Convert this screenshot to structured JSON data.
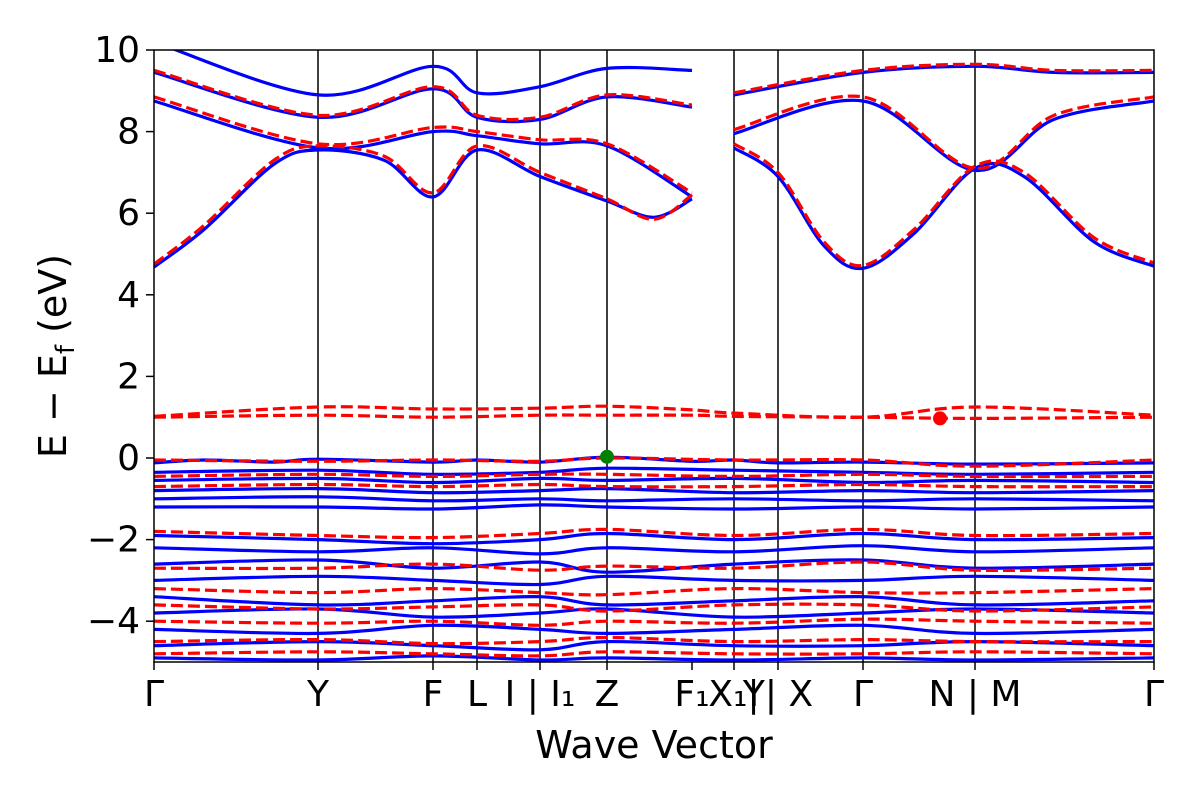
{
  "chart_data": {
    "type": "line",
    "title": "",
    "xlabel": "Wave Vector",
    "ylabel": "E − E",
    "ylabel_subscript": "f",
    "ylabel_unit": "(eV)",
    "ylim": [
      -5,
      10
    ],
    "yticks": [
      -4,
      -2,
      0,
      2,
      4,
      6,
      8,
      10
    ],
    "k_points": [
      {
        "label": "Γ",
        "x": 0.0
      },
      {
        "label": "Y",
        "x": 0.164
      },
      {
        "label": "F",
        "x": 0.279
      },
      {
        "label": "L",
        "x": 0.323
      },
      {
        "label": "I | I₁",
        "x": 0.386
      },
      {
        "label": "Z",
        "x": 0.453
      },
      {
        "label": "F₁",
        "x": 0.538
      },
      {
        "label": "X₁|",
        "x": 0.58
      },
      {
        "label": "Y| X",
        "x": 0.624
      },
      {
        "label": "Γ",
        "x": 0.709
      },
      {
        "label": "N | M",
        "x": 0.821
      },
      {
        "label": "Γ",
        "x": 1.0
      }
    ],
    "vertical_lines_x": [
      0.164,
      0.279,
      0.323,
      0.386,
      0.453,
      0.58,
      0.624,
      0.709,
      0.821
    ],
    "series": [
      {
        "name": "",
        "style": "solid",
        "color": "#0000ff",
        "bands": [
          {
            "x": [
              0,
              0.05,
              0.12,
              0.164,
              0.23,
              0.279,
              0.323,
              0.386,
              0.453,
              0.5,
              0.538
            ],
            "y": [
              4.68,
              5.6,
              7.2,
              7.55,
              7.3,
              6.4,
              7.55,
              6.9,
              6.3,
              5.9,
              6.35
            ]
          },
          {
            "x": [
              0.58,
              0.624,
              0.67,
              0.709,
              0.76,
              0.821,
              0.87,
              0.94,
              1.0
            ],
            "y": [
              7.6,
              6.9,
              5.2,
              4.65,
              5.5,
              7.1,
              6.9,
              5.3,
              4.7
            ]
          },
          {
            "x": [
              0,
              0.164,
              0.279,
              0.323,
              0.386,
              0.453,
              0.538
            ],
            "y": [
              8.75,
              7.6,
              8.0,
              7.9,
              7.7,
              7.65,
              6.4
            ]
          },
          {
            "x": [
              0.58,
              0.709,
              0.821,
              0.9,
              1.0
            ],
            "y": [
              7.95,
              8.75,
              7.05,
              8.3,
              8.75
            ]
          },
          {
            "x": [
              0,
              0.164,
              0.279,
              0.323,
              0.386,
              0.453,
              0.538
            ],
            "y": [
              9.45,
              8.35,
              9.05,
              8.35,
              8.3,
              8.85,
              8.6
            ]
          },
          {
            "x": [
              0.58,
              0.709,
              0.821,
              0.9,
              1.0
            ],
            "y": [
              8.9,
              9.45,
              9.6,
              9.45,
              9.45
            ]
          },
          {
            "x": [
              0,
              0.164,
              0.279,
              0.323,
              0.386,
              0.453,
              0.538
            ],
            "y": [
              10.2,
              8.9,
              9.6,
              8.95,
              9.1,
              9.55,
              9.5
            ]
          },
          {
            "x": [
              0,
              0.05,
              0.12,
              0.164,
              0.279,
              0.323,
              0.386,
              0.453,
              0.538,
              0.58,
              0.624,
              0.709,
              0.821,
              1.0
            ],
            "y": [
              -0.12,
              -0.05,
              -0.1,
              -0.03,
              -0.1,
              -0.05,
              -0.1,
              0.02,
              -0.08,
              -0.05,
              -0.12,
              -0.1,
              -0.15,
              -0.12
            ]
          },
          {
            "x": [
              0,
              0.164,
              0.279,
              0.386,
              0.453,
              0.58,
              0.709,
              0.821,
              1.0
            ],
            "y": [
              -0.35,
              -0.3,
              -0.4,
              -0.35,
              -0.25,
              -0.3,
              -0.35,
              -0.4,
              -0.35
            ]
          },
          {
            "x": [
              0,
              0.164,
              0.279,
              0.386,
              0.453,
              0.58,
              0.709,
              0.821,
              1.0
            ],
            "y": [
              -0.55,
              -0.5,
              -0.6,
              -0.5,
              -0.55,
              -0.5,
              -0.6,
              -0.55,
              -0.6
            ]
          },
          {
            "x": [
              0,
              0.164,
              0.279,
              0.386,
              0.453,
              0.58,
              0.709,
              0.821,
              1.0
            ],
            "y": [
              -0.8,
              -0.75,
              -0.85,
              -0.8,
              -0.75,
              -0.85,
              -0.8,
              -0.85,
              -0.8
            ]
          },
          {
            "x": [
              0,
              0.164,
              0.279,
              0.386,
              0.453,
              0.58,
              0.709,
              0.821,
              1.0
            ],
            "y": [
              -1.0,
              -0.95,
              -1.05,
              -1.0,
              -1.05,
              -1.0,
              -1.05,
              -1.0,
              -1.05
            ]
          },
          {
            "x": [
              0,
              0.164,
              0.279,
              0.386,
              0.453,
              0.58,
              0.709,
              0.821,
              1.0
            ],
            "y": [
              -1.2,
              -1.2,
              -1.25,
              -1.15,
              -1.2,
              -1.25,
              -1.2,
              -1.25,
              -1.2
            ]
          },
          {
            "x": [
              0,
              0.164,
              0.279,
              0.386,
              0.453,
              0.58,
              0.709,
              0.821,
              1.0
            ],
            "y": [
              -1.9,
              -2.0,
              -2.1,
              -2.0,
              -1.85,
              -2.0,
              -1.85,
              -2.0,
              -1.95
            ]
          },
          {
            "x": [
              0,
              0.164,
              0.279,
              0.386,
              0.453,
              0.58,
              0.709,
              0.821,
              1.0
            ],
            "y": [
              -2.2,
              -2.3,
              -2.2,
              -2.35,
              -2.2,
              -2.3,
              -2.15,
              -2.3,
              -2.2
            ]
          },
          {
            "x": [
              0,
              0.164,
              0.279,
              0.386,
              0.453,
              0.58,
              0.709,
              0.821,
              1.0
            ],
            "y": [
              -2.6,
              -2.5,
              -2.7,
              -2.55,
              -2.8,
              -2.6,
              -2.5,
              -2.7,
              -2.6
            ]
          },
          {
            "x": [
              0,
              0.164,
              0.279,
              0.386,
              0.453,
              0.58,
              0.709,
              0.821,
              1.0
            ],
            "y": [
              -3.0,
              -2.9,
              -3.0,
              -3.1,
              -2.9,
              -3.0,
              -3.0,
              -2.9,
              -3.0
            ]
          },
          {
            "x": [
              0,
              0.164,
              0.279,
              0.386,
              0.453,
              0.58,
              0.709,
              0.821,
              1.0
            ],
            "y": [
              -3.4,
              -3.6,
              -3.5,
              -3.4,
              -3.6,
              -3.5,
              -3.4,
              -3.6,
              -3.5
            ]
          },
          {
            "x": [
              0,
              0.164,
              0.279,
              0.386,
              0.453,
              0.58,
              0.709,
              0.821,
              1.0
            ],
            "y": [
              -3.8,
              -3.7,
              -3.9,
              -3.8,
              -3.7,
              -3.9,
              -3.8,
              -3.7,
              -3.8
            ]
          },
          {
            "x": [
              0,
              0.164,
              0.279,
              0.386,
              0.453,
              0.58,
              0.709,
              0.821,
              1.0
            ],
            "y": [
              -4.2,
              -4.3,
              -4.1,
              -4.2,
              -4.3,
              -4.2,
              -4.1,
              -4.3,
              -4.2
            ]
          },
          {
            "x": [
              0,
              0.164,
              0.279,
              0.386,
              0.453,
              0.58,
              0.709,
              0.821,
              1.0
            ],
            "y": [
              -4.6,
              -4.5,
              -4.6,
              -4.7,
              -4.5,
              -4.6,
              -4.6,
              -4.5,
              -4.6
            ]
          },
          {
            "x": [
              0,
              0.164,
              0.279,
              0.386,
              0.453,
              0.58,
              0.709,
              0.821,
              1.0
            ],
            "y": [
              -4.9,
              -4.95,
              -4.85,
              -4.95,
              -4.9,
              -4.95,
              -4.9,
              -4.95,
              -4.9
            ]
          }
        ]
      },
      {
        "name": "",
        "style": "dashed",
        "color": "#ff0000",
        "bands": [
          {
            "x": [
              0,
              0.05,
              0.12,
              0.164,
              0.23,
              0.279,
              0.323,
              0.386,
              0.453,
              0.5,
              0.538
            ],
            "y": [
              4.75,
              5.7,
              7.3,
              7.65,
              7.4,
              6.5,
              7.65,
              7.0,
              6.35,
              5.85,
              6.45
            ]
          },
          {
            "x": [
              0.58,
              0.624,
              0.67,
              0.709,
              0.76,
              0.821,
              0.87,
              0.94,
              1.0
            ],
            "y": [
              7.7,
              7.0,
              5.3,
              4.72,
              5.6,
              7.15,
              7.0,
              5.4,
              4.78
            ]
          },
          {
            "x": [
              0,
              0.164,
              0.279,
              0.323,
              0.386,
              0.453,
              0.538
            ],
            "y": [
              8.85,
              7.7,
              8.1,
              8.0,
              7.8,
              7.7,
              6.5
            ]
          },
          {
            "x": [
              0.58,
              0.709,
              0.821,
              0.9,
              1.0
            ],
            "y": [
              8.05,
              8.85,
              7.1,
              8.4,
              8.85
            ]
          },
          {
            "x": [
              0,
              0.164,
              0.279,
              0.323,
              0.386,
              0.453,
              0.538
            ],
            "y": [
              9.5,
              8.4,
              9.1,
              8.4,
              8.35,
              8.9,
              8.65
            ]
          },
          {
            "x": [
              0.58,
              0.709,
              0.821,
              0.9,
              1.0
            ],
            "y": [
              8.95,
              9.5,
              9.65,
              9.5,
              9.5
            ]
          },
          {
            "x": [
              0,
              0.164,
              0.279,
              0.386,
              0.453,
              0.538,
              0.58,
              0.709,
              0.821,
              1.0
            ],
            "y": [
              1.0,
              1.05,
              1.0,
              1.05,
              1.05,
              1.05,
              1.02,
              1.0,
              0.97,
              1.0
            ]
          },
          {
            "x": [
              0,
              0.164,
              0.279,
              0.386,
              0.453,
              0.538,
              0.58,
              0.709,
              0.821,
              1.0
            ],
            "y": [
              1.02,
              1.25,
              1.2,
              1.22,
              1.27,
              1.18,
              1.1,
              1.0,
              1.25,
              1.05
            ]
          },
          {
            "x": [
              0,
              0.164,
              0.279,
              0.386,
              0.453,
              0.58,
              0.709,
              0.821,
              1.0
            ],
            "y": [
              -0.05,
              -0.08,
              -0.05,
              -0.08,
              0.0,
              -0.05,
              -0.05,
              -0.2,
              -0.05
            ]
          },
          {
            "x": [
              0,
              0.164,
              0.279,
              0.386,
              0.453,
              0.58,
              0.709,
              0.821,
              1.0
            ],
            "y": [
              -0.45,
              -0.4,
              -0.45,
              -0.4,
              -0.4,
              -0.45,
              -0.4,
              -0.45,
              -0.45
            ]
          },
          {
            "x": [
              0,
              0.164,
              0.279,
              0.386,
              0.453,
              0.58,
              0.709,
              0.821,
              1.0
            ],
            "y": [
              -0.7,
              -0.65,
              -0.7,
              -0.65,
              -0.7,
              -0.7,
              -0.65,
              -0.7,
              -0.7
            ]
          },
          {
            "x": [
              0,
              0.164,
              0.279,
              0.386,
              0.453,
              0.58,
              0.709,
              0.821,
              1.0
            ],
            "y": [
              -1.8,
              -1.9,
              -1.95,
              -1.85,
              -1.75,
              -1.9,
              -1.75,
              -1.9,
              -1.85
            ]
          },
          {
            "x": [
              0,
              0.164,
              0.279,
              0.386,
              0.453,
              0.58,
              0.709,
              0.821,
              1.0
            ],
            "y": [
              -2.7,
              -2.7,
              -2.6,
              -2.75,
              -2.65,
              -2.7,
              -2.55,
              -2.75,
              -2.7
            ]
          },
          {
            "x": [
              0,
              0.164,
              0.279,
              0.386,
              0.453,
              0.58,
              0.709,
              0.821,
              1.0
            ],
            "y": [
              -3.2,
              -3.3,
              -3.2,
              -3.3,
              -3.35,
              -3.2,
              -3.3,
              -3.3,
              -3.2
            ]
          },
          {
            "x": [
              0,
              0.164,
              0.279,
              0.386,
              0.453,
              0.58,
              0.709,
              0.821,
              1.0
            ],
            "y": [
              -3.6,
              -3.7,
              -3.65,
              -3.6,
              -3.75,
              -3.6,
              -3.6,
              -3.75,
              -3.65
            ]
          },
          {
            "x": [
              0,
              0.164,
              0.279,
              0.386,
              0.453,
              0.58,
              0.709,
              0.821,
              1.0
            ],
            "y": [
              -4.0,
              -4.05,
              -4.0,
              -4.1,
              -4.0,
              -4.05,
              -3.95,
              -4.0,
              -4.05
            ]
          },
          {
            "x": [
              0,
              0.164,
              0.279,
              0.386,
              0.453,
              0.58,
              0.709,
              0.821,
              1.0
            ],
            "y": [
              -4.5,
              -4.45,
              -4.55,
              -4.5,
              -4.4,
              -4.5,
              -4.45,
              -4.5,
              -4.5
            ]
          },
          {
            "x": [
              0,
              0.164,
              0.279,
              0.386,
              0.453,
              0.58,
              0.709,
              0.821,
              1.0
            ],
            "y": [
              -4.8,
              -4.75,
              -4.8,
              -4.85,
              -4.75,
              -4.8,
              -4.8,
              -4.75,
              -4.8
            ]
          }
        ]
      }
    ],
    "markers": [
      {
        "name": "valence-band-maximum",
        "x": 0.453,
        "y": 0.03,
        "color": "#008000"
      },
      {
        "name": "conduction-band-minimum",
        "x": 0.786,
        "y": 0.97,
        "color": "#ff0000"
      }
    ]
  }
}
